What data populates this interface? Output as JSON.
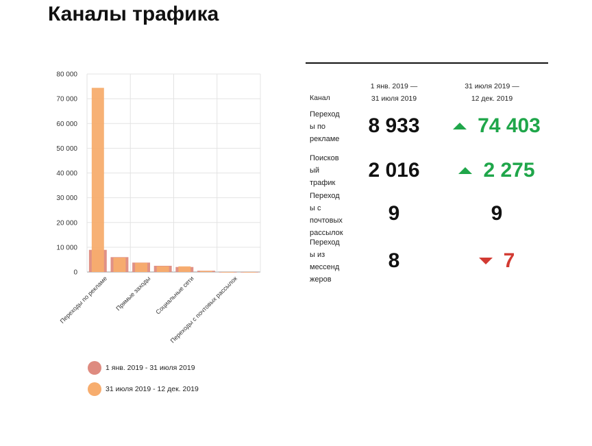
{
  "title": "Каналы трафика",
  "colors": {
    "series1": "#de8b80",
    "series2": "#f7ad6e",
    "up": "#1fa64a",
    "down": "#d23a32"
  },
  "chart_data": {
    "type": "bar",
    "title": "",
    "xlabel": "",
    "ylabel": "",
    "ylim": [
      0,
      80000
    ],
    "yticks": [
      "0",
      "10 000",
      "20 000",
      "30 000",
      "40 000",
      "50 000",
      "60 000",
      "70 000",
      "80 000"
    ],
    "grid": true,
    "legend_position": "bottom",
    "categories": [
      "Переходы по рекламе",
      "",
      "Прямые заходы",
      "",
      "Социальные сети",
      "",
      "Переходы с почтовых рассылок",
      ""
    ],
    "series": [
      {
        "name": "1 янв. 2019 - 31 июля 2019",
        "values": [
          8933,
          6000,
          3800,
          2500,
          2016,
          500,
          9,
          8
        ]
      },
      {
        "name": "31 июля 2019 - 12 дек. 2019",
        "values": [
          74403,
          5800,
          3700,
          2300,
          2275,
          400,
          9,
          7
        ]
      }
    ]
  },
  "table": {
    "col_channel": "Канал",
    "col_period1_line1": "1 янв. 2019 —",
    "col_period1_line2": "31 июля 2019",
    "col_period2_line1": "31 июля 2019 —",
    "col_period2_line2": "12 дек. 2019",
    "rows": [
      {
        "label_lines": [
          "Переход",
          "ы по",
          "рекламе"
        ],
        "value": "8 933",
        "compare": "74 403",
        "trend": "up"
      },
      {
        "label_lines": [
          "Поисков",
          "ый",
          "трафик"
        ],
        "value": "2 016",
        "compare": "2 275",
        "trend": "up"
      },
      {
        "label_lines": [
          "Переход",
          "ы с",
          "почтовых",
          "рассылок"
        ],
        "value": "9",
        "compare": "9",
        "trend": "none"
      },
      {
        "label_lines": [
          "Переход",
          "ы из",
          "мессенд",
          "жеров"
        ],
        "value": "8",
        "compare": "7",
        "trend": "down"
      }
    ]
  }
}
